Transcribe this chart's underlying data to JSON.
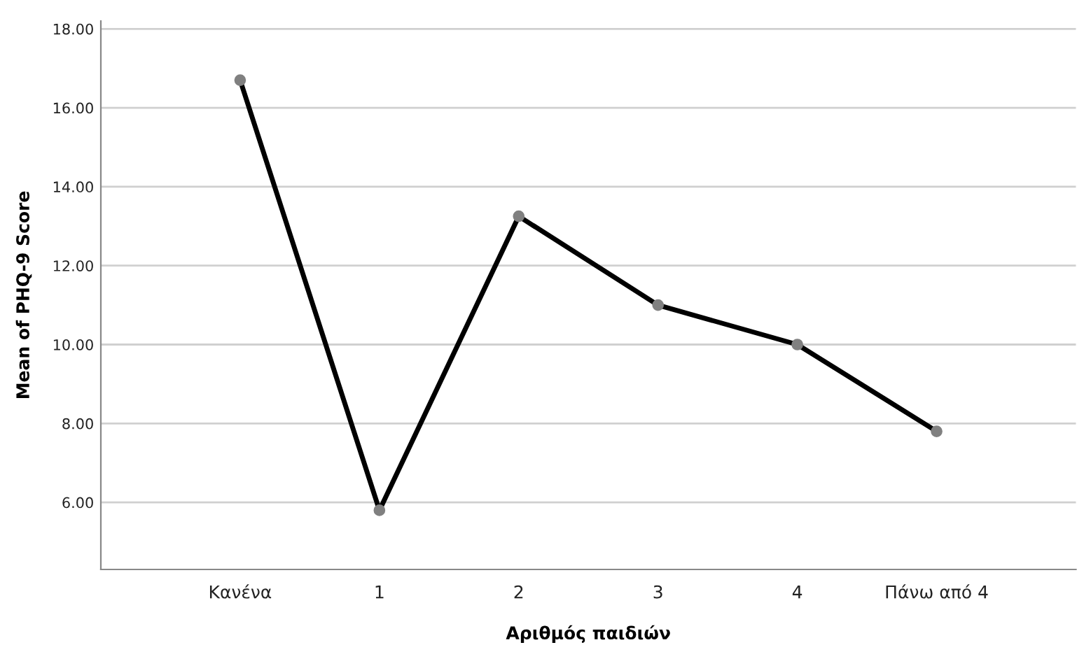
{
  "chart_data": {
    "type": "line",
    "xlabel": "Αριθμός παιδιών",
    "ylabel": "Mean of PHQ-9 Score",
    "categories": [
      "Κανένα",
      "1",
      "2",
      "3",
      "4",
      "Πάνω από 4"
    ],
    "series": [
      {
        "color": "#000000",
        "values": [
          16.7,
          5.8,
          13.25,
          11.0,
          10.0,
          7.8
        ]
      }
    ],
    "ylim": [
      4.3,
      18.2
    ],
    "yticks": [
      {
        "value": 6,
        "label": "6.00"
      },
      {
        "value": 8,
        "label": "8.00"
      },
      {
        "value": 10,
        "label": "10.00"
      },
      {
        "value": 12,
        "label": "12.00"
      },
      {
        "value": 14,
        "label": "14.00"
      },
      {
        "value": 16,
        "label": "16.00"
      },
      {
        "value": 18,
        "label": "18.00"
      }
    ],
    "grid": "y",
    "marker": "circle",
    "line_style": "solid"
  }
}
